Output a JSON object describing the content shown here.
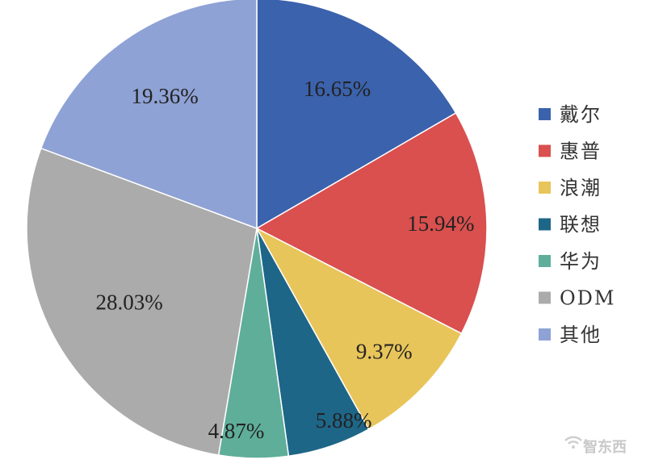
{
  "chart_data": {
    "type": "pie",
    "categories": [
      "戴尔",
      "惠普",
      "浪潮",
      "联想",
      "华为",
      "ODM",
      "其他"
    ],
    "values": [
      16.65,
      15.94,
      9.37,
      5.88,
      4.87,
      28.03,
      19.36
    ],
    "labels": [
      "16.65%",
      "15.94%",
      "9.37%",
      "5.88%",
      "4.87%",
      "28.03%",
      "19.36%"
    ],
    "colors": [
      "#3b62ac",
      "#d9504f",
      "#e8c55a",
      "#1e6688",
      "#5fae9a",
      "#ababab",
      "#8fa2d5"
    ],
    "start": "12 o'clock",
    "direction": "clockwise",
    "legend_position": "right"
  },
  "watermark": {
    "text": "智东西"
  }
}
